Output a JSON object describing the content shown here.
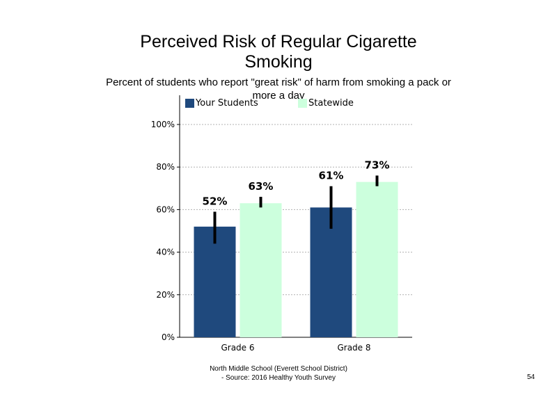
{
  "title": "Perceived Risk of Regular Cigarette Smoking",
  "subtitle": "Percent of students who report \"great risk\" of harm from smoking  a pack or more a day",
  "footer": {
    "line1": "North Middle School (Everett School District)",
    "line2": "- Source: 2016 Healthy Youth Survey"
  },
  "page_number": "54",
  "chart_data": {
    "type": "bar",
    "title": "Perceived Risk of Regular Cigarette Smoking",
    "subtitle": "Percent of students who report \"great risk\" of harm from smoking  a pack or more a day",
    "categories": [
      "Grade 6",
      "Grade 8"
    ],
    "series": [
      {
        "name": "Your Students",
        "color": "#1f497d",
        "values": [
          52,
          61
        ],
        "labels": [
          "52%",
          "61%"
        ],
        "error_low": [
          44,
          51
        ],
        "error_high": [
          59,
          71
        ]
      },
      {
        "name": "Statewide",
        "color": "#ccffdd",
        "values": [
          63,
          73
        ],
        "labels": [
          "63%",
          "73%"
        ],
        "error_low": [
          61,
          71
        ],
        "error_high": [
          66,
          76
        ]
      }
    ],
    "y_ticks": [
      "0%",
      "20%",
      "40%",
      "60%",
      "80%",
      "100%"
    ],
    "ylim": [
      0,
      100
    ],
    "grid": true,
    "legend_position": "top"
  }
}
